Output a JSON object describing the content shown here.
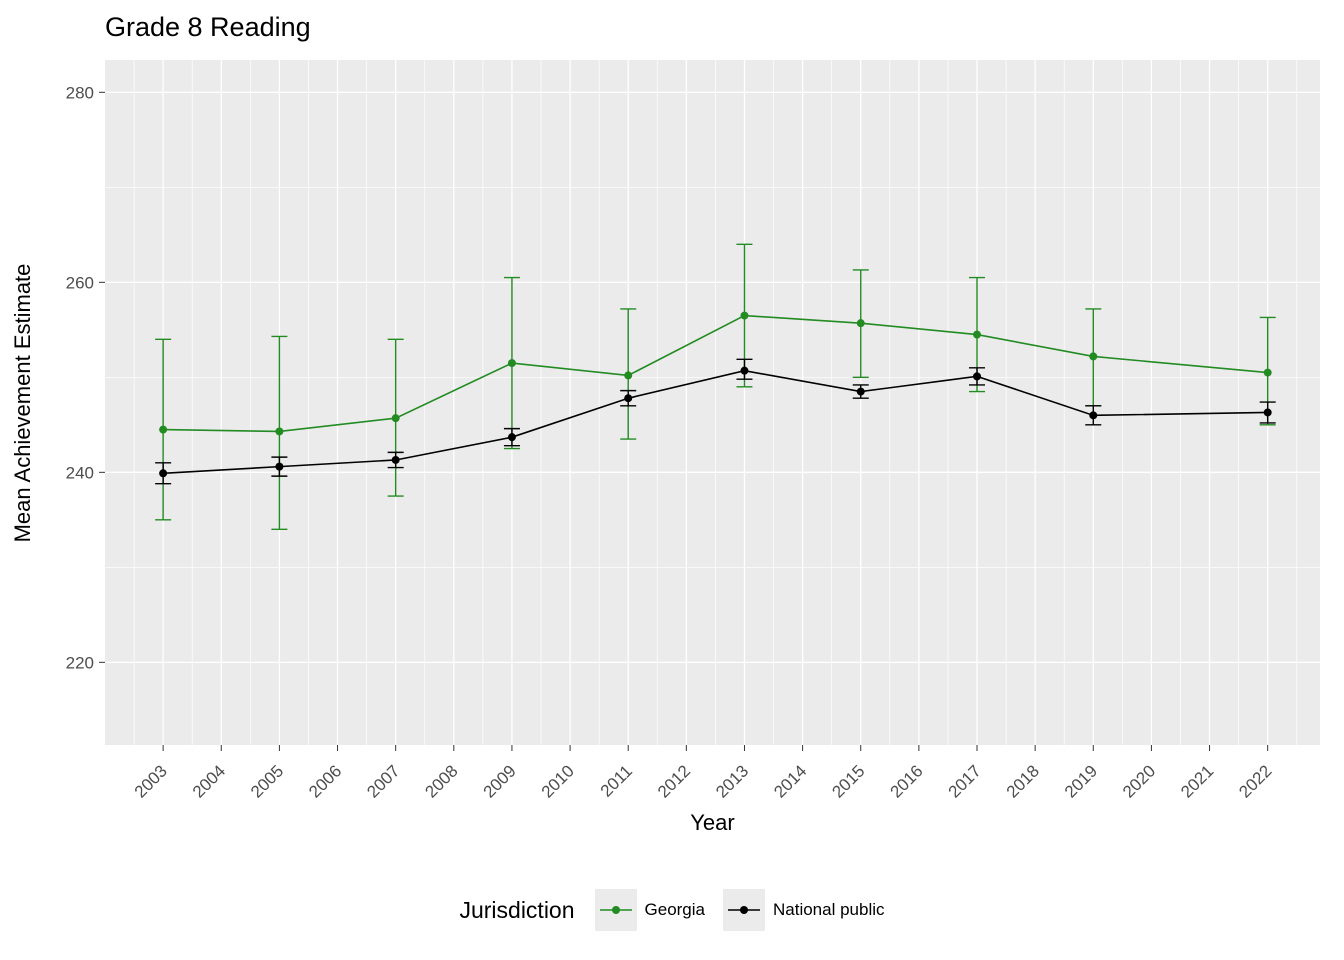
{
  "title": "Grade 8 Reading",
  "axes": {
    "x_label": "Year",
    "y_label": "Mean Achievement Estimate"
  },
  "legend": {
    "title": "Jurisdiction",
    "entries": [
      {
        "label": "Georgia",
        "color": "#228B22"
      },
      {
        "label": "National public",
        "color": "#000000"
      }
    ]
  },
  "chart_data": {
    "type": "line",
    "title": "Grade 8 Reading",
    "xlabel": "Year",
    "ylabel": "Mean Achievement Estimate",
    "grid": true,
    "legend_position": "bottom",
    "panel_background": "#ebebeb",
    "gridline_color": "#ffffff",
    "tick_label_color": "#4d4d4d",
    "xlim": [
      2002.0,
      2022.9
    ],
    "ylim": [
      211.3,
      283.4
    ],
    "x_ticks": [
      2003,
      2004,
      2005,
      2006,
      2007,
      2008,
      2009,
      2010,
      2011,
      2012,
      2013,
      2014,
      2015,
      2016,
      2017,
      2018,
      2019,
      2020,
      2021,
      2022
    ],
    "x_minor": [
      2002.5,
      2003.5,
      2004.5,
      2005.5,
      2006.5,
      2007.5,
      2008.5,
      2009.5,
      2010.5,
      2011.5,
      2012.5,
      2013.5,
      2014.5,
      2015.5,
      2016.5,
      2017.5,
      2018.5,
      2019.5,
      2020.5,
      2021.5,
      2022.5
    ],
    "y_ticks": [
      220,
      240,
      260,
      280
    ],
    "y_minor": [
      230,
      250,
      270
    ],
    "series": [
      {
        "name": "Georgia",
        "color": "#228B22",
        "x": [
          2003,
          2005,
          2007,
          2009,
          2011,
          2013,
          2015,
          2017,
          2019,
          2022
        ],
        "y": [
          244.5,
          244.3,
          245.7,
          251.5,
          250.2,
          256.5,
          255.7,
          254.5,
          252.2,
          250.5
        ],
        "ymin": [
          235.0,
          234.0,
          237.5,
          242.5,
          243.5,
          249.0,
          250.0,
          248.5,
          247.0,
          245.0
        ],
        "ymax": [
          254.0,
          254.3,
          254.0,
          260.5,
          257.2,
          264.0,
          261.3,
          260.5,
          257.2,
          256.3
        ]
      },
      {
        "name": "National public",
        "color": "#000000",
        "x": [
          2003,
          2005,
          2007,
          2009,
          2011,
          2013,
          2015,
          2017,
          2019,
          2022
        ],
        "y": [
          239.9,
          240.6,
          241.3,
          243.7,
          247.8,
          250.7,
          248.5,
          250.1,
          246.0,
          246.3
        ],
        "ymin": [
          238.8,
          239.6,
          240.5,
          242.8,
          247.0,
          249.8,
          247.8,
          249.2,
          245.0,
          245.2
        ],
        "ymax": [
          241.0,
          241.6,
          242.1,
          244.6,
          248.6,
          251.9,
          249.2,
          251.0,
          247.0,
          247.4
        ]
      }
    ]
  }
}
